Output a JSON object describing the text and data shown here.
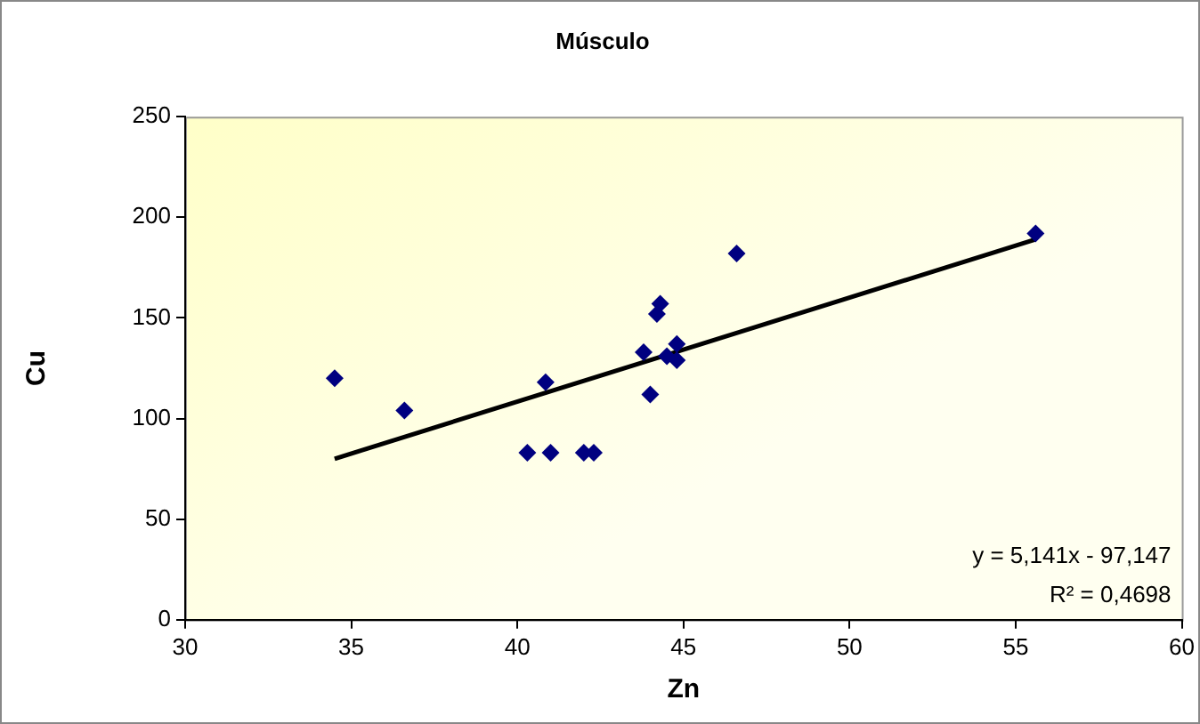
{
  "chart_data": {
    "type": "scatter",
    "title": "Músculo",
    "xlabel": "Zn",
    "ylabel": "Cu",
    "marker": "diamond",
    "legend": false,
    "grid": false,
    "xlim": [
      30,
      60
    ],
    "xticks": [
      30,
      35,
      40,
      45,
      50,
      55,
      60
    ],
    "ylim": [
      0,
      250
    ],
    "yticks": [
      0,
      50,
      100,
      150,
      200,
      250
    ],
    "series": [
      {
        "color": "#000080",
        "x": [
          34.5,
          36.6,
          40.85,
          40.3,
          41.0,
          42.0,
          42.3,
          43.8,
          44.0,
          44.3,
          44.2,
          44.8,
          44.5,
          44.8,
          46.6,
          55.6
        ],
        "values": [
          120,
          104,
          118,
          83,
          83,
          83,
          83,
          133,
          112,
          157,
          152,
          137,
          131,
          129,
          182,
          192
        ]
      },
      {
        "type": "line",
        "color": "#000000",
        "x": [
          34.5,
          55.6
        ],
        "values": [
          80,
          189
        ],
        "marker": "none"
      }
    ],
    "annotations": [
      "y = 5,141x - 97,147",
      "R² = 0,4698"
    ]
  }
}
